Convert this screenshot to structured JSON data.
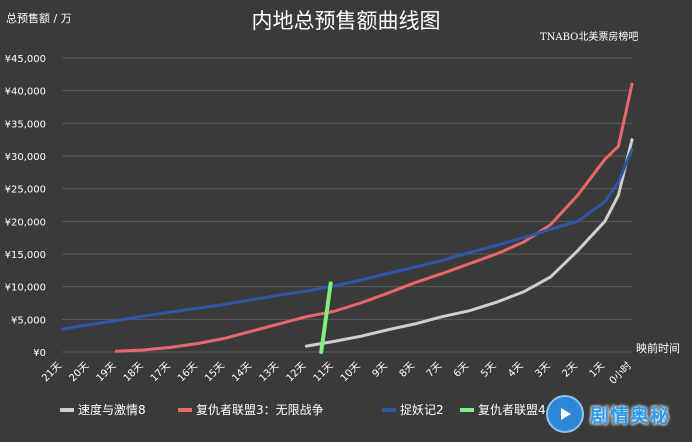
{
  "chart_data": {
    "type": "line",
    "title": "内地总预售额曲线图",
    "ylabel": "总预售额 / 万",
    "xlabel": "映前时间",
    "watermark": "TNABO北美票房榜吧",
    "badge": "剧情奥秘",
    "ylim": [
      0,
      45000
    ],
    "yticks": [
      "¥0",
      "¥5,000",
      "¥10,000",
      "¥15,000",
      "¥20,000",
      "¥25,000",
      "¥30,000",
      "¥35,000",
      "¥40,000",
      "¥45,000"
    ],
    "ytick_values": [
      0,
      5000,
      10000,
      15000,
      20000,
      25000,
      30000,
      35000,
      40000,
      45000
    ],
    "categories": [
      "21天",
      "20天",
      "19天",
      "18天",
      "17天",
      "16天",
      "15天",
      "14天",
      "13天",
      "12天",
      "11天",
      "10天",
      "9天",
      "8天",
      "7天",
      "6天",
      "5天",
      "4天",
      "3天",
      "2天",
      "1天",
      "0小时"
    ],
    "grid": true,
    "legend_position": "bottom",
    "series": [
      {
        "name": "速度与激情8",
        "color": "#cfcfcf",
        "x": [
          12,
          11,
          10,
          9,
          8,
          7,
          6,
          5,
          4,
          3,
          2,
          1,
          0.5,
          0
        ],
        "values": [
          900,
          1600,
          2400,
          3400,
          4300,
          5400,
          6300,
          7600,
          9200,
          11500,
          15500,
          20000,
          24000,
          32500
        ]
      },
      {
        "name": "复仇者联盟3：无限战争",
        "color": "#e8686a",
        "x": [
          19,
          18,
          17,
          16,
          15,
          14,
          13,
          12,
          11,
          10,
          9,
          8,
          7,
          6,
          5,
          4,
          3,
          2,
          1,
          0.5,
          0
        ],
        "values": [
          100,
          300,
          700,
          1300,
          2100,
          3200,
          4300,
          5400,
          6200,
          7500,
          9000,
          10600,
          12000,
          13500,
          15000,
          16800,
          19500,
          24000,
          29500,
          31500,
          41000
        ]
      },
      {
        "name": "捉妖记2",
        "color": "#2e56a6",
        "x": [
          21,
          20,
          19,
          18,
          17,
          16,
          15,
          14,
          13,
          12,
          11,
          10,
          9,
          8,
          7,
          6,
          5,
          4,
          3,
          2,
          1,
          0.5,
          0
        ],
        "values": [
          3500,
          4200,
          4800,
          5500,
          6100,
          6700,
          7300,
          8000,
          8700,
          9300,
          10100,
          11000,
          12000,
          13000,
          14000,
          15200,
          16300,
          17500,
          18800,
          20000,
          23000,
          26000,
          31000
        ]
      },
      {
        "name": "复仇者联盟4",
        "color": "#7ef07e",
        "x": [
          11.45,
          11.1
        ],
        "values": [
          0,
          10500
        ]
      }
    ]
  }
}
